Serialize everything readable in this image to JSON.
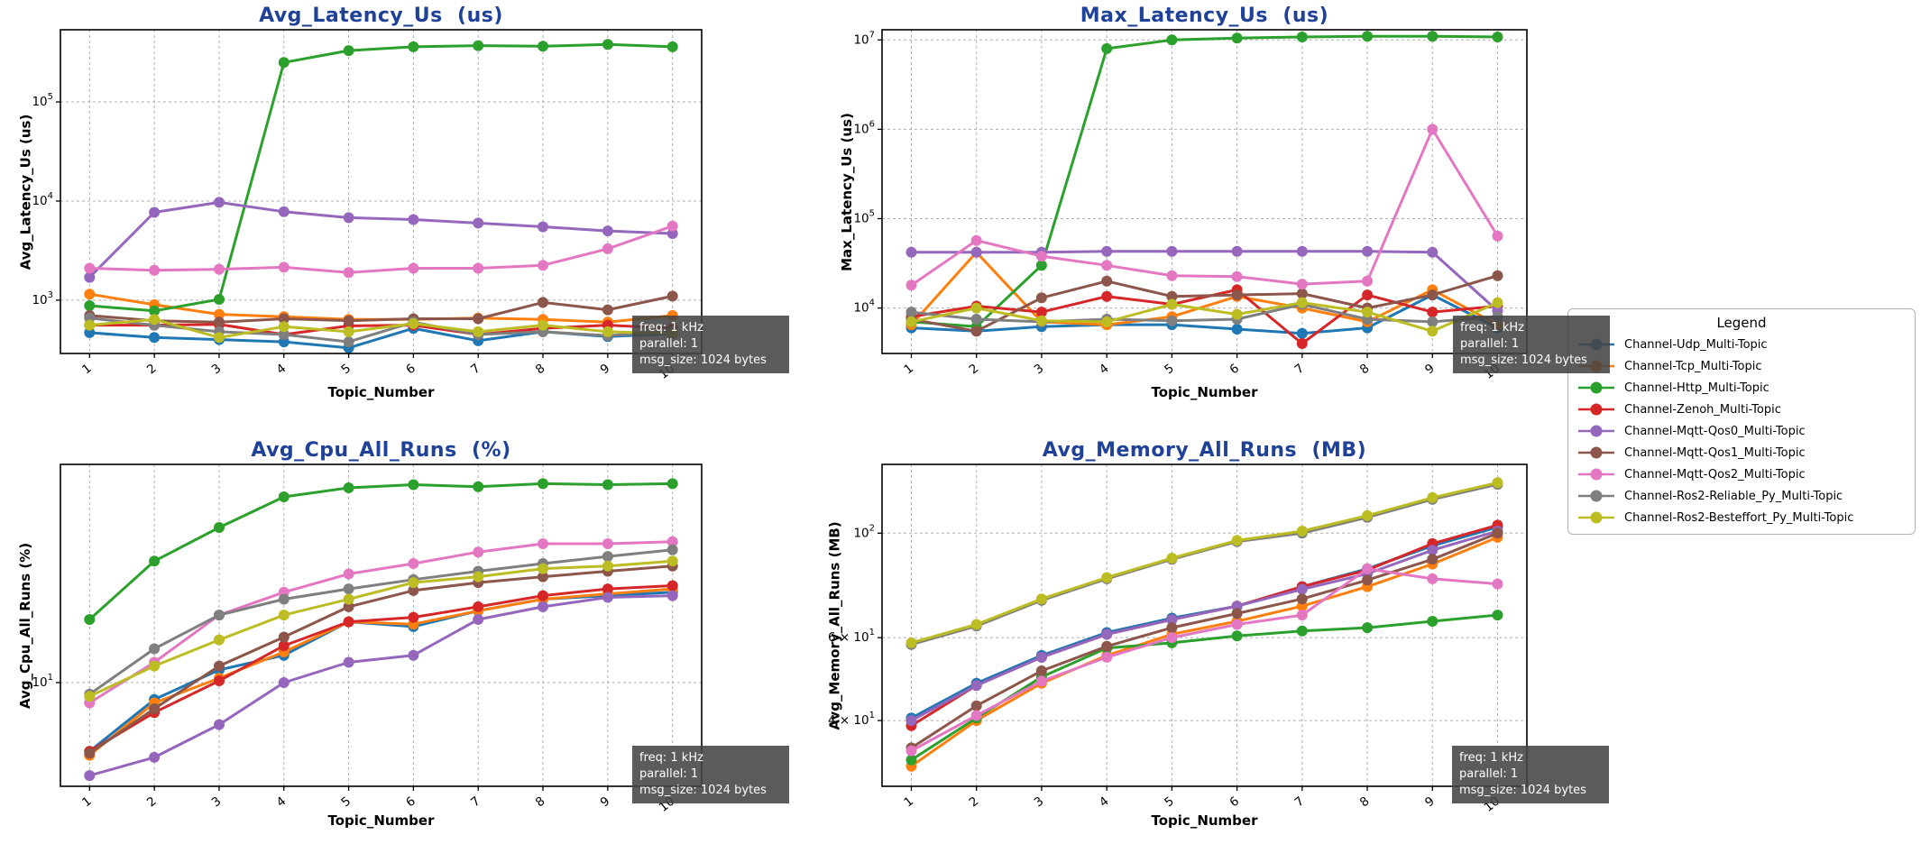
{
  "annotation": {
    "lines": [
      "freq: 1 kHz",
      "parallel: 1",
      "msg_size: 1024 bytes"
    ]
  },
  "legend": {
    "title": "Legend",
    "items": [
      {
        "label": "Channel-Udp_Multi-Topic",
        "color": "#1f77b4"
      },
      {
        "label": "Channel-Tcp_Multi-Topic",
        "color": "#ff7f0e"
      },
      {
        "label": "Channel-Http_Multi-Topic",
        "color": "#2ca02c"
      },
      {
        "label": "Channel-Zenoh_Multi-Topic",
        "color": "#d62728"
      },
      {
        "label": "Channel-Mqtt-Qos0_Multi-Topic",
        "color": "#9467bd"
      },
      {
        "label": "Channel-Mqtt-Qos1_Multi-Topic",
        "color": "#8c564b"
      },
      {
        "label": "Channel-Mqtt-Qos2_Multi-Topic",
        "color": "#e377c2"
      },
      {
        "label": "Channel-Ros2-Reliable_Py_Multi-Topic",
        "color": "#7f7f7f"
      },
      {
        "label": "Channel-Ros2-Besteffort_Py_Multi-Topic",
        "color": "#bcbd22"
      }
    ]
  },
  "chart_data": [
    {
      "type": "line",
      "title": "Avg_Latency_Us  (us)",
      "ylabel": "Avg_Latency_Us (us)",
      "xlabel": "Topic_Number",
      "yscale": "log",
      "x": [
        1,
        2,
        3,
        4,
        5,
        6,
        7,
        8,
        9,
        10
      ],
      "xlim": [
        0.55,
        10.45
      ],
      "ylim": [
        290,
        535000
      ],
      "grid": true,
      "yticks": [
        {
          "v": 1000,
          "m": "10",
          "e": "3"
        },
        {
          "v": 10000,
          "m": "10",
          "e": "4"
        },
        {
          "v": 100000,
          "m": "10",
          "e": "5"
        }
      ],
      "series": [
        {
          "name": "Channel-Udp_Multi-Topic",
          "color": "#1f77b4",
          "values": [
            470,
            420,
            400,
            380,
            330,
            520,
            390,
            480,
            430,
            460
          ]
        },
        {
          "name": "Channel-Tcp_Multi-Topic",
          "color": "#ff7f0e",
          "values": [
            1150,
            900,
            720,
            680,
            640,
            640,
            660,
            640,
            600,
            700
          ]
        },
        {
          "name": "Channel-Http_Multi-Topic",
          "color": "#2ca02c",
          "values": [
            880,
            780,
            1020,
            250000,
            330000,
            360000,
            370000,
            365000,
            380000,
            360000
          ]
        },
        {
          "name": "Channel-Zenoh_Multi-Topic",
          "color": "#d62728",
          "values": [
            560,
            560,
            570,
            450,
            550,
            560,
            450,
            520,
            560,
            520
          ]
        },
        {
          "name": "Channel-Mqtt-Qos0_Multi-Topic",
          "color": "#9467bd",
          "values": [
            1700,
            7700,
            9700,
            7800,
            6800,
            6500,
            6000,
            5500,
            5000,
            4700
          ]
        },
        {
          "name": "Channel-Mqtt-Qos1_Multi-Topic",
          "color": "#8c564b",
          "values": [
            700,
            620,
            600,
            650,
            620,
            650,
            650,
            950,
            800,
            1100
          ]
        },
        {
          "name": "Channel-Mqtt-Qos2_Multi-Topic",
          "color": "#e377c2",
          "values": [
            2100,
            2000,
            2050,
            2150,
            1900,
            2100,
            2100,
            2250,
            3300,
            5600
          ]
        },
        {
          "name": "Channel-Ros2-Reliable_Py_Multi-Topic",
          "color": "#7f7f7f",
          "values": [
            660,
            560,
            480,
            450,
            380,
            600,
            450,
            480,
            440,
            480
          ]
        },
        {
          "name": "Channel-Ros2-Besteffort_Py_Multi-Topic",
          "color": "#bcbd22",
          "values": [
            560,
            640,
            420,
            540,
            480,
            580,
            480,
            560,
            480,
            460
          ]
        }
      ]
    },
    {
      "type": "line",
      "title": "Max_Latency_Us  (us)",
      "ylabel": "Max_Latency_Us (us)",
      "xlabel": "Topic_Number",
      "yscale": "log",
      "x": [
        1,
        2,
        3,
        4,
        5,
        6,
        7,
        8,
        9,
        10
      ],
      "xlim": [
        0.55,
        10.45
      ],
      "ylim": [
        3100,
        13000000
      ],
      "grid": true,
      "yticks": [
        {
          "v": 10000,
          "m": "10",
          "e": "4"
        },
        {
          "v": 100000,
          "m": "10",
          "e": "5"
        },
        {
          "v": 1000000,
          "m": "10",
          "e": "6"
        },
        {
          "v": 10000000,
          "m": "10",
          "e": "7"
        }
      ],
      "series": [
        {
          "name": "Channel-Udp_Multi-Topic",
          "color": "#1f77b4",
          "values": [
            6000,
            5500,
            6200,
            6500,
            6500,
            5800,
            5200,
            6000,
            14000,
            6000
          ]
        },
        {
          "name": "Channel-Tcp_Multi-Topic",
          "color": "#ff7f0e",
          "values": [
            6500,
            42000,
            7000,
            6500,
            8000,
            13500,
            10000,
            7000,
            16000,
            6500
          ]
        },
        {
          "name": "Channel-Http_Multi-Topic",
          "color": "#2ca02c",
          "values": [
            7000,
            6200,
            30000,
            8000000,
            10000000,
            10500000,
            10800000,
            11000000,
            11000000,
            10800000
          ]
        },
        {
          "name": "Channel-Zenoh_Multi-Topic",
          "color": "#d62728",
          "values": [
            8000,
            10500,
            9000,
            13500,
            11000,
            16000,
            4000,
            14000,
            9000,
            10500
          ]
        },
        {
          "name": "Channel-Mqtt-Qos0_Multi-Topic",
          "color": "#9467bd",
          "values": [
            42000,
            42000,
            42000,
            43000,
            43000,
            43000,
            43000,
            43000,
            42000,
            9300
          ]
        },
        {
          "name": "Channel-Mqtt-Qos1_Multi-Topic",
          "color": "#8c564b",
          "values": [
            7500,
            5500,
            13000,
            20000,
            13500,
            14000,
            14500,
            10000,
            14000,
            23000
          ]
        },
        {
          "name": "Channel-Mqtt-Qos2_Multi-Topic",
          "color": "#e377c2",
          "values": [
            18000,
            57000,
            38000,
            30000,
            23000,
            22500,
            18500,
            20000,
            1000000,
            64000
          ]
        },
        {
          "name": "Channel-Ros2-Reliable_Py_Multi-Topic",
          "color": "#7f7f7f",
          "values": [
            9000,
            7500,
            7000,
            7500,
            7200,
            7500,
            11000,
            7500,
            7000,
            8000
          ]
        },
        {
          "name": "Channel-Ros2-Besteffort_Py_Multi-Topic",
          "color": "#bcbd22",
          "values": [
            7000,
            10000,
            7200,
            7000,
            11000,
            8500,
            11500,
            9000,
            5500,
            11500
          ]
        }
      ]
    },
    {
      "type": "line",
      "title": "Avg_Cpu_All_Runs  (%)",
      "ylabel": "Avg_Cpu_All_Runs (%)",
      "xlabel": "Topic_Number",
      "yscale": "log",
      "x": [
        1,
        2,
        3,
        4,
        5,
        6,
        7,
        8,
        9,
        10
      ],
      "xlim": [
        0.55,
        10.45
      ],
      "ylim": [
        3.2,
        110
      ],
      "grid": true,
      "yticks": [
        {
          "v": 10,
          "m": "10",
          "e": "1"
        }
      ],
      "series": [
        {
          "name": "Channel-Udp_Multi-Topic",
          "color": "#1f77b4",
          "values": [
            4.7,
            8.3,
            11.5,
            13.5,
            19.5,
            18.5,
            22,
            25,
            26,
            27
          ]
        },
        {
          "name": "Channel-Tcp_Multi-Topic",
          "color": "#ff7f0e",
          "values": [
            4.5,
            8.0,
            10.5,
            14,
            19.5,
            19,
            22,
            25,
            26.5,
            28
          ]
        },
        {
          "name": "Channel-Http_Multi-Topic",
          "color": "#2ca02c",
          "values": [
            20,
            38,
            55,
            77,
            85,
            88,
            86,
            89,
            88,
            89
          ]
        },
        {
          "name": "Channel-Zenoh_Multi-Topic",
          "color": "#d62728",
          "values": [
            4.7,
            7.2,
            10.2,
            15,
            19.5,
            20.5,
            23,
            26,
            28,
            29
          ]
        },
        {
          "name": "Channel-Mqtt-Qos0_Multi-Topic",
          "color": "#9467bd",
          "values": [
            3.6,
            4.4,
            6.3,
            10,
            12.5,
            13.5,
            20,
            23,
            25.5,
            26
          ]
        },
        {
          "name": "Channel-Mqtt-Qos1_Multi-Topic",
          "color": "#8c564b",
          "values": [
            4.6,
            7.5,
            12,
            16.5,
            23,
            27.5,
            30,
            32,
            34,
            36
          ]
        },
        {
          "name": "Channel-Mqtt-Qos2_Multi-Topic",
          "color": "#e377c2",
          "values": [
            8.0,
            12.5,
            21,
            27,
            33,
            37,
            42,
            46,
            46,
            47
          ]
        },
        {
          "name": "Channel-Ros2-Reliable_Py_Multi-Topic",
          "color": "#7f7f7f",
          "values": [
            8.8,
            14.5,
            21,
            25,
            28,
            31,
            34,
            37,
            40,
            43
          ]
        },
        {
          "name": "Channel-Ros2-Besteffort_Py_Multi-Topic",
          "color": "#bcbd22",
          "values": [
            8.6,
            12,
            16,
            21,
            25,
            30,
            32,
            35,
            36,
            38
          ]
        }
      ]
    },
    {
      "type": "line",
      "title": "Avg_Memory_All_Runs  (MB)",
      "ylabel": "Avg_Memory_All_Runs (MB)",
      "xlabel": "Topic_Number",
      "yscale": "log",
      "x": [
        1,
        2,
        3,
        4,
        5,
        6,
        7,
        8,
        9,
        10
      ],
      "xlim": [
        0.55,
        10.45
      ],
      "ylim": [
        29,
        140
      ],
      "grid": true,
      "yticks": [
        {
          "v": 40,
          "m": "4 × 10",
          "e": "1"
        },
        {
          "v": 60,
          "m": "6 × 10",
          "e": "1"
        },
        {
          "v": 100,
          "m": "10",
          "e": "2"
        }
      ],
      "series": [
        {
          "name": "Channel-Udp_Multi-Topic",
          "color": "#1f77b4",
          "values": [
            40.5,
            48,
            55,
            61.5,
            66,
            70,
            77,
            84,
            94,
            103
          ]
        },
        {
          "name": "Channel-Tcp_Multi-Topic",
          "color": "#ff7f0e",
          "values": [
            32,
            40,
            48,
            55,
            61,
            65,
            70,
            77,
            86,
            98
          ]
        },
        {
          "name": "Channel-Http_Multi-Topic",
          "color": "#2ca02c",
          "values": [
            33,
            40.5,
            49.5,
            57,
            58.5,
            60.5,
            62,
            63,
            65,
            67
          ]
        },
        {
          "name": "Channel-Zenoh_Multi-Topic",
          "color": "#d62728",
          "values": [
            39,
            47.5,
            54.5,
            61,
            65.5,
            70,
            77,
            83.5,
            95,
            104
          ]
        },
        {
          "name": "Channel-Mqtt-Qos0_Multi-Topic",
          "color": "#9467bd",
          "values": [
            40,
            47.5,
            54.5,
            61,
            65.5,
            70,
            76,
            82,
            92,
            101
          ]
        },
        {
          "name": "Channel-Mqtt-Qos1_Multi-Topic",
          "color": "#8c564b",
          "values": [
            35,
            43,
            51,
            57.5,
            63,
            67.5,
            72.5,
            79.5,
            88,
            100
          ]
        },
        {
          "name": "Channel-Mqtt-Qos2_Multi-Topic",
          "color": "#e377c2",
          "values": [
            34.5,
            41,
            48.5,
            54.5,
            60,
            64,
            67,
            84,
            80,
            78
          ]
        },
        {
          "name": "Channel-Ros2-Reliable_Py_Multi-Topic",
          "color": "#7f7f7f",
          "values": [
            58,
            63.5,
            72,
            80,
            88,
            96,
            100,
            108,
            118,
            127
          ]
        },
        {
          "name": "Channel-Ros2-Besteffort_Py_Multi-Topic",
          "color": "#bcbd22",
          "values": [
            58.5,
            64,
            72.5,
            80.5,
            88.5,
            96.5,
            101,
            109,
            119,
            128
          ]
        }
      ]
    }
  ]
}
